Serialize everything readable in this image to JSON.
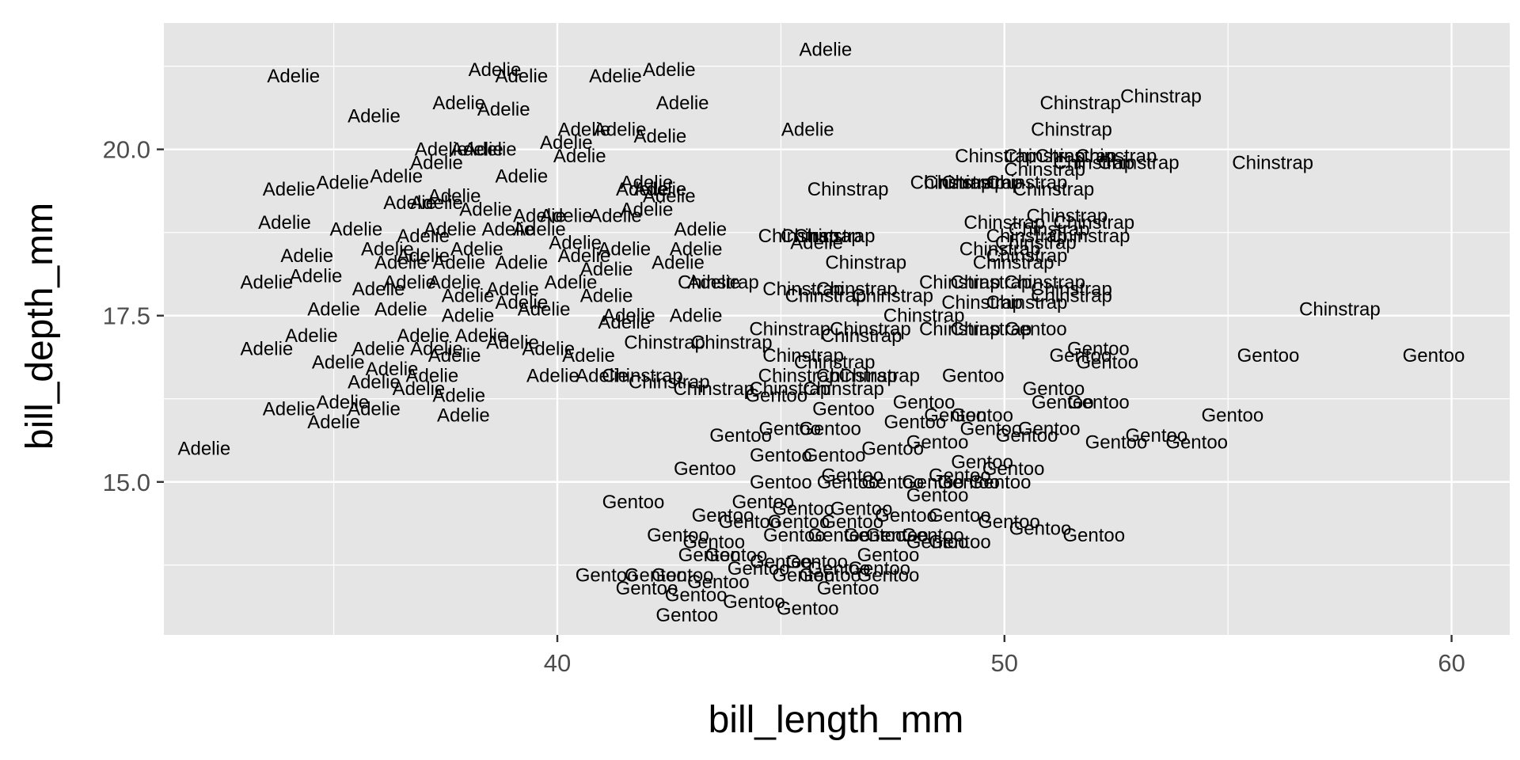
{
  "chart_data": {
    "type": "scatter",
    "marker": "text-label",
    "xlabel": "bill_length_mm",
    "ylabel": "bill_depth_mm",
    "xlim": [
      31.2,
      61.3
    ],
    "ylim": [
      12.7,
      21.9
    ],
    "x_ticks": [
      40,
      50,
      60
    ],
    "x_tick_labels": [
      "40",
      "50",
      "60"
    ],
    "y_ticks": [
      15.0,
      17.5,
      20.0
    ],
    "y_tick_labels": [
      "15.0",
      "17.5",
      "20.0"
    ],
    "x_minor_ticks": [
      35,
      45,
      55
    ],
    "y_minor_ticks": [
      13.75,
      16.25,
      18.75,
      21.25
    ],
    "grid": true,
    "legend": "none",
    "point_color": "#000000",
    "panel_background": "#e5e5e5",
    "points": [
      [
        "Adelie",
        34.1,
        21.1
      ],
      [
        "Adelie",
        38.6,
        21.2
      ],
      [
        "Adelie",
        39.2,
        21.1
      ],
      [
        "Adelie",
        41.3,
        21.1
      ],
      [
        "Adelie",
        42.5,
        21.2
      ],
      [
        "Adelie",
        46.0,
        21.5
      ],
      [
        "Adelie",
        35.9,
        20.5
      ],
      [
        "Adelie",
        37.8,
        20.7
      ],
      [
        "Adelie",
        38.8,
        20.6
      ],
      [
        "Adelie",
        40.6,
        20.3
      ],
      [
        "Adelie",
        41.4,
        20.3
      ],
      [
        "Adelie",
        42.3,
        20.2
      ],
      [
        "Adelie",
        42.8,
        20.7
      ],
      [
        "Adelie",
        45.6,
        20.3
      ],
      [
        "Adelie",
        37.4,
        20.0
      ],
      [
        "Adelie",
        38.2,
        20.0
      ],
      [
        "Adelie",
        38.5,
        20.0
      ],
      [
        "Adelie",
        40.5,
        19.9
      ],
      [
        "Adelie",
        37.3,
        19.8
      ],
      [
        "Adelie",
        40.2,
        20.1
      ],
      [
        "Adelie",
        39.2,
        19.6
      ],
      [
        "Adelie",
        34.0,
        19.4
      ],
      [
        "Adelie",
        35.2,
        19.5
      ],
      [
        "Adelie",
        36.4,
        19.6
      ],
      [
        "Adelie",
        36.7,
        19.2
      ],
      [
        "Adelie",
        37.3,
        19.2
      ],
      [
        "Adelie",
        37.7,
        19.3
      ],
      [
        "Adelie",
        38.4,
        19.1
      ],
      [
        "Adelie",
        39.6,
        19.0
      ],
      [
        "Adelie",
        40.2,
        19.0
      ],
      [
        "Adelie",
        41.3,
        19.0
      ],
      [
        "Adelie",
        42.0,
        19.1
      ],
      [
        "Adelie",
        42.5,
        19.3
      ],
      [
        "Adelie",
        42.0,
        19.5
      ],
      [
        "Adelie",
        42.3,
        19.4
      ],
      [
        "Adelie",
        41.9,
        19.4
      ],
      [
        "Adelie",
        33.9,
        18.9
      ],
      [
        "Adelie",
        35.5,
        18.8
      ],
      [
        "Adelie",
        37.0,
        18.7
      ],
      [
        "Adelie",
        37.6,
        18.8
      ],
      [
        "Adelie",
        38.9,
        18.8
      ],
      [
        "Adelie",
        39.6,
        18.8
      ],
      [
        "Adelie",
        40.4,
        18.6
      ],
      [
        "Adelie",
        41.5,
        18.5
      ],
      [
        "Adelie",
        43.2,
        18.8
      ],
      [
        "Adelie",
        45.8,
        18.6
      ],
      [
        "Adelie",
        34.4,
        18.4
      ],
      [
        "Adelie",
        36.2,
        18.5
      ],
      [
        "Adelie",
        36.5,
        18.3
      ],
      [
        "Adelie",
        37.0,
        18.4
      ],
      [
        "Adelie",
        37.8,
        18.3
      ],
      [
        "Adelie",
        38.2,
        18.5
      ],
      [
        "Adelie",
        39.2,
        18.3
      ],
      [
        "Adelie",
        40.6,
        18.4
      ],
      [
        "Adelie",
        41.1,
        18.2
      ],
      [
        "Adelie",
        42.7,
        18.3
      ],
      [
        "Adelie",
        43.1,
        18.5
      ],
      [
        "Adelie",
        33.5,
        18.0
      ],
      [
        "Adelie",
        34.6,
        18.1
      ],
      [
        "Adelie",
        36.0,
        17.9
      ],
      [
        "Adelie",
        36.7,
        18.0
      ],
      [
        "Adelie",
        37.7,
        18.0
      ],
      [
        "Adelie",
        38.0,
        17.8
      ],
      [
        "Adelie",
        39.0,
        17.9
      ],
      [
        "Adelie",
        40.3,
        18.0
      ],
      [
        "Adelie",
        41.1,
        17.8
      ],
      [
        "Adelie",
        41.6,
        17.5
      ],
      [
        "Adelie",
        43.5,
        18.0
      ],
      [
        "Adelie",
        39.7,
        17.6
      ],
      [
        "Adelie",
        35.0,
        17.6
      ],
      [
        "Adelie",
        36.5,
        17.6
      ],
      [
        "Adelie",
        38.0,
        17.5
      ],
      [
        "Adelie",
        39.2,
        17.7
      ],
      [
        "Adelie",
        41.5,
        17.4
      ],
      [
        "Adelie",
        43.1,
        17.5
      ],
      [
        "Adelie",
        34.5,
        17.2
      ],
      [
        "Adelie",
        36.0,
        17.0
      ],
      [
        "Adelie",
        37.0,
        17.2
      ],
      [
        "Adelie",
        37.3,
        17.0
      ],
      [
        "Adelie",
        37.7,
        16.9
      ],
      [
        "Adelie",
        38.3,
        17.2
      ],
      [
        "Adelie",
        39.0,
        17.1
      ],
      [
        "Adelie",
        39.8,
        17.0
      ],
      [
        "Adelie",
        40.7,
        16.9
      ],
      [
        "Adelie",
        33.5,
        17.0
      ],
      [
        "Adelie",
        35.1,
        16.8
      ],
      [
        "Adelie",
        36.3,
        16.7
      ],
      [
        "Adelie",
        37.2,
        16.6
      ],
      [
        "Adelie",
        35.9,
        16.5
      ],
      [
        "Adelie",
        36.9,
        16.4
      ],
      [
        "Adelie",
        37.8,
        16.3
      ],
      [
        "Adelie",
        39.9,
        16.6
      ],
      [
        "Adelie",
        41.0,
        16.6
      ],
      [
        "Adelie",
        34.0,
        16.1
      ],
      [
        "Adelie",
        35.2,
        16.2
      ],
      [
        "Adelie",
        35.9,
        16.1
      ],
      [
        "Adelie",
        37.9,
        16.0
      ],
      [
        "Adelie",
        35.0,
        15.9
      ],
      [
        "Adelie",
        32.1,
        15.5
      ],
      [
        "Chinstrap",
        46.5,
        19.4
      ],
      [
        "Chinstrap",
        45.4,
        18.7
      ],
      [
        "Chinstrap",
        46.2,
        18.7
      ],
      [
        "Chinstrap",
        46.9,
        18.3
      ],
      [
        "Chinstrap",
        47.5,
        17.8
      ],
      [
        "Chinstrap",
        46.7,
        17.9
      ],
      [
        "Chinstrap",
        45.5,
        17.9
      ],
      [
        "Chinstrap",
        45.2,
        17.3
      ],
      [
        "Chinstrap",
        47.0,
        17.3
      ],
      [
        "Chinstrap",
        45.5,
        16.9
      ],
      [
        "Chinstrap",
        46.2,
        16.8
      ],
      [
        "Chinstrap",
        47.2,
        16.6
      ],
      [
        "Chinstrap",
        46.4,
        16.4
      ],
      [
        "Chinstrap",
        45.2,
        16.4
      ],
      [
        "Chinstrap",
        42.5,
        16.5
      ],
      [
        "Chinstrap",
        43.5,
        16.4
      ],
      [
        "Chinstrap",
        43.9,
        17.1
      ],
      [
        "Chinstrap",
        41.9,
        16.6
      ],
      [
        "Chinstrap",
        43.6,
        18.0
      ],
      [
        "Chinstrap",
        42.4,
        17.1
      ],
      [
        "Chinstrap",
        45.9,
        18.7
      ],
      [
        "Chinstrap",
        46.0,
        17.8
      ],
      [
        "Chinstrap",
        46.8,
        17.2
      ],
      [
        "Chinstrap",
        45.4,
        16.6
      ],
      [
        "Chinstrap",
        46.7,
        16.6
      ],
      [
        "Chinstrap",
        49.0,
        17.3
      ],
      [
        "Chinstrap",
        48.2,
        17.5
      ],
      [
        "Chinstrap",
        51.7,
        20.7
      ],
      [
        "Chinstrap",
        53.5,
        20.8
      ],
      [
        "Chinstrap",
        51.5,
        20.3
      ],
      [
        "Chinstrap",
        49.8,
        19.9
      ],
      [
        "Chinstrap",
        50.9,
        19.9
      ],
      [
        "Chinstrap",
        51.6,
        19.9
      ],
      [
        "Chinstrap",
        52.5,
        19.9
      ],
      [
        "Chinstrap",
        53.0,
        19.8
      ],
      [
        "Chinstrap",
        56.0,
        19.8
      ],
      [
        "Chinstrap",
        52.0,
        19.8
      ],
      [
        "Chinstrap",
        50.9,
        19.7
      ],
      [
        "Chinstrap",
        49.1,
        19.5
      ],
      [
        "Chinstrap",
        48.8,
        19.5
      ],
      [
        "Chinstrap",
        49.5,
        19.5
      ],
      [
        "Chinstrap",
        50.5,
        19.5
      ],
      [
        "Chinstrap",
        51.1,
        19.4
      ],
      [
        "Chinstrap",
        50.0,
        18.9
      ],
      [
        "Chinstrap",
        51.4,
        19.0
      ],
      [
        "Chinstrap",
        51.0,
        18.8
      ],
      [
        "Chinstrap",
        52.0,
        18.9
      ],
      [
        "Chinstrap",
        50.5,
        18.7
      ],
      [
        "Chinstrap",
        51.9,
        18.7
      ],
      [
        "Chinstrap",
        49.9,
        18.5
      ],
      [
        "Chinstrap",
        50.7,
        18.6
      ],
      [
        "Chinstrap",
        50.5,
        18.4
      ],
      [
        "Chinstrap",
        50.2,
        18.3
      ],
      [
        "Chinstrap",
        49.0,
        18.0
      ],
      [
        "Chinstrap",
        49.7,
        18.0
      ],
      [
        "Chinstrap",
        50.9,
        18.0
      ],
      [
        "Chinstrap",
        51.5,
        17.9
      ],
      [
        "Chinstrap",
        49.5,
        17.7
      ],
      [
        "Chinstrap",
        50.5,
        17.7
      ],
      [
        "Chinstrap",
        51.5,
        17.8
      ],
      [
        "Chinstrap",
        57.5,
        17.6
      ],
      [
        "Chinstrap",
        49.7,
        17.3
      ],
      [
        "Gentoo",
        50.7,
        17.3
      ],
      [
        "Gentoo",
        51.7,
        16.9
      ],
      [
        "Gentoo",
        52.1,
        17.0
      ],
      [
        "Gentoo",
        52.3,
        16.8
      ],
      [
        "Gentoo",
        55.9,
        16.9
      ],
      [
        "Gentoo",
        59.6,
        16.9
      ],
      [
        "Gentoo",
        49.3,
        16.6
      ],
      [
        "Gentoo",
        51.1,
        16.4
      ],
      [
        "Gentoo",
        51.3,
        16.2
      ],
      [
        "Gentoo",
        52.1,
        16.2
      ],
      [
        "Gentoo",
        44.9,
        16.3
      ],
      [
        "Gentoo",
        46.4,
        16.1
      ],
      [
        "Gentoo",
        48.2,
        16.2
      ],
      [
        "Gentoo",
        48.9,
        16.0
      ],
      [
        "Gentoo",
        49.5,
        16.0
      ],
      [
        "Gentoo",
        48.0,
        15.9
      ],
      [
        "Gentoo",
        49.7,
        15.8
      ],
      [
        "Gentoo",
        50.5,
        15.7
      ],
      [
        "Gentoo",
        51.0,
        15.8
      ],
      [
        "Gentoo",
        53.4,
        15.7
      ],
      [
        "Gentoo",
        54.3,
        15.6
      ],
      [
        "Gentoo",
        55.1,
        16.0
      ],
      [
        "Gentoo",
        52.5,
        15.6
      ],
      [
        "Gentoo",
        48.5,
        15.6
      ],
      [
        "Gentoo",
        44.1,
        15.7
      ],
      [
        "Gentoo",
        45.2,
        15.8
      ],
      [
        "Gentoo",
        46.1,
        15.8
      ],
      [
        "Gentoo",
        47.5,
        15.5
      ],
      [
        "Gentoo",
        45.0,
        15.4
      ],
      [
        "Gentoo",
        46.2,
        15.4
      ],
      [
        "Gentoo",
        43.3,
        15.2
      ],
      [
        "Gentoo",
        49.5,
        15.3
      ],
      [
        "Gentoo",
        50.2,
        15.2
      ],
      [
        "Gentoo",
        49.0,
        15.1
      ],
      [
        "Gentoo",
        45.0,
        15.0
      ],
      [
        "Gentoo",
        46.5,
        15.0
      ],
      [
        "Gentoo",
        47.5,
        15.0
      ],
      [
        "Gentoo",
        48.4,
        15.0
      ],
      [
        "Gentoo",
        49.2,
        15.0
      ],
      [
        "Gentoo",
        49.9,
        15.0
      ],
      [
        "Gentoo",
        46.6,
        15.1
      ],
      [
        "Gentoo",
        48.5,
        14.8
      ],
      [
        "Gentoo",
        41.7,
        14.7
      ],
      [
        "Gentoo",
        44.6,
        14.7
      ],
      [
        "Gentoo",
        45.5,
        14.6
      ],
      [
        "Gentoo",
        46.8,
        14.6
      ],
      [
        "Gentoo",
        47.8,
        14.5
      ],
      [
        "Gentoo",
        49.0,
        14.5
      ],
      [
        "Gentoo",
        50.1,
        14.4
      ],
      [
        "Gentoo",
        43.7,
        14.5
      ],
      [
        "Gentoo",
        44.3,
        14.4
      ],
      [
        "Gentoo",
        45.4,
        14.4
      ],
      [
        "Gentoo",
        46.6,
        14.4
      ],
      [
        "Gentoo",
        47.6,
        14.2
      ],
      [
        "Gentoo",
        48.4,
        14.2
      ],
      [
        "Gentoo",
        42.7,
        14.2
      ],
      [
        "Gentoo",
        43.5,
        14.1
      ],
      [
        "Gentoo",
        45.3,
        14.2
      ],
      [
        "Gentoo",
        46.3,
        14.2
      ],
      [
        "Gentoo",
        47.1,
        14.2
      ],
      [
        "Gentoo",
        48.5,
        14.1
      ],
      [
        "Gentoo",
        49.0,
        14.1
      ],
      [
        "Gentoo",
        50.8,
        14.3
      ],
      [
        "Gentoo",
        52.0,
        14.2
      ],
      [
        "Gentoo",
        43.4,
        13.9
      ],
      [
        "Gentoo",
        44.0,
        13.9
      ],
      [
        "Gentoo",
        45.0,
        13.8
      ],
      [
        "Gentoo",
        45.8,
        13.8
      ],
      [
        "Gentoo",
        46.3,
        13.7
      ],
      [
        "Gentoo",
        47.4,
        13.9
      ],
      [
        "Gentoo",
        44.5,
        13.7
      ],
      [
        "Gentoo",
        45.5,
        13.6
      ],
      [
        "Gentoo",
        46.1,
        13.6
      ],
      [
        "Gentoo",
        47.2,
        13.7
      ],
      [
        "Gentoo",
        41.1,
        13.6
      ],
      [
        "Gentoo",
        42.2,
        13.6
      ],
      [
        "Gentoo",
        42.8,
        13.6
      ],
      [
        "Gentoo",
        42.0,
        13.4
      ],
      [
        "Gentoo",
        43.1,
        13.3
      ],
      [
        "Gentoo",
        43.6,
        13.5
      ],
      [
        "Gentoo",
        44.4,
        13.2
      ],
      [
        "Gentoo",
        45.6,
        13.1
      ],
      [
        "Gentoo",
        46.5,
        13.4
      ],
      [
        "Gentoo",
        47.4,
        13.6
      ],
      [
        "Gentoo",
        42.9,
        13.0
      ]
    ]
  }
}
